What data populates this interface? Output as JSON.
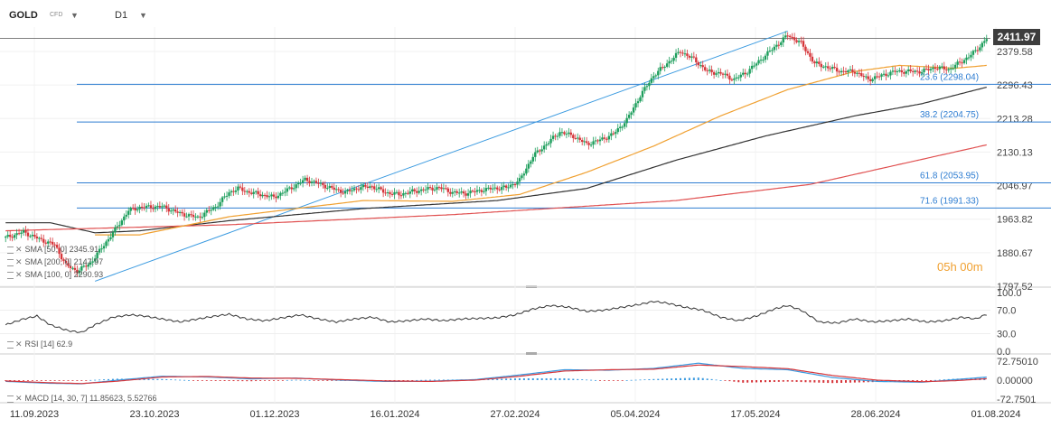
{
  "header": {
    "symbol": "GOLD",
    "symbol_type": "CFD",
    "timeframe": "D1"
  },
  "last_price_label": "2411.97",
  "countdown": "05h 00m",
  "legends": [
    {
      "text": "SMA [50, 0]  2345.91"
    },
    {
      "text": "SMA [200, 0]  2147.97"
    },
    {
      "text": "SMA [100, 0]  2290.93"
    }
  ],
  "rsi_legend": "RSI [14]  62.9",
  "macd_legend": "MACD [14, 30, 7]  11.85623,  5.52766",
  "colors": {
    "up": "#1d9e5c",
    "down": "#d6353a",
    "sma50": "#f0a030",
    "sma200": "#e05050",
    "sma100": "#333333",
    "fib": "#2e7dd1",
    "trend": "#3a9ae0",
    "macd_line": "#3a9ae0",
    "signal_line": "#d6353a",
    "rsi": "#333333"
  },
  "chart_data": {
    "type": "candlestick",
    "x_ticks": [
      "11.09.2023",
      "23.10.2023",
      "01.12.2023",
      "16.01.2024",
      "27.02.2024",
      "05.04.2024",
      "17.05.2024",
      "28.06.2024",
      "01.08.2024"
    ],
    "price_ticks": [
      "2379.58",
      "2296.43",
      "2213.28",
      "2130.13",
      "2046.97",
      "1963.82",
      "1880.67",
      "1797.52"
    ],
    "ylim": [
      1797.52,
      2440
    ],
    "last_price": 2411.97,
    "fibonacci_levels": [
      {
        "label": "23.6 (2298.04)",
        "value": 2298.04
      },
      {
        "label": "38.2 (2204.75)",
        "value": 2204.75
      },
      {
        "label": "61.8 (2053.95)",
        "value": 2053.95
      },
      {
        "label": "71.6 (1991.33)",
        "value": 1991.33
      }
    ],
    "price_keypoints": [
      [
        0,
        1918
      ],
      [
        8,
        1932
      ],
      [
        16,
        1912
      ],
      [
        22,
        1900
      ],
      [
        27,
        1850
      ],
      [
        32,
        1835
      ],
      [
        38,
        1855
      ],
      [
        42,
        1885
      ],
      [
        48,
        1930
      ],
      [
        55,
        1985
      ],
      [
        60,
        1993
      ],
      [
        70,
        1995
      ],
      [
        78,
        1978
      ],
      [
        86,
        1968
      ],
      [
        94,
        1995
      ],
      [
        100,
        2030
      ],
      [
        104,
        2040
      ],
      [
        108,
        2032
      ],
      [
        114,
        2025
      ],
      [
        120,
        2018
      ],
      [
        128,
        2042
      ],
      [
        134,
        2062
      ],
      [
        140,
        2052
      ],
      [
        146,
        2040
      ],
      [
        152,
        2030
      ],
      [
        158,
        2042
      ],
      [
        164,
        2045
      ],
      [
        170,
        2030
      ],
      [
        176,
        2025
      ],
      [
        182,
        2032
      ],
      [
        188,
        2038
      ],
      [
        194,
        2042
      ],
      [
        200,
        2030
      ],
      [
        206,
        2028
      ],
      [
        212,
        2035
      ],
      [
        218,
        2040
      ],
      [
        224,
        2042
      ],
      [
        230,
        2060
      ],
      [
        236,
        2120
      ],
      [
        242,
        2150
      ],
      [
        248,
        2180
      ],
      [
        254,
        2170
      ],
      [
        260,
        2150
      ],
      [
        266,
        2160
      ],
      [
        272,
        2175
      ],
      [
        278,
        2210
      ],
      [
        284,
        2270
      ],
      [
        290,
        2320
      ],
      [
        296,
        2350
      ],
      [
        302,
        2380
      ],
      [
        308,
        2360
      ],
      [
        314,
        2330
      ],
      [
        320,
        2325
      ],
      [
        326,
        2310
      ],
      [
        332,
        2330
      ],
      [
        338,
        2360
      ],
      [
        344,
        2390
      ],
      [
        350,
        2420
      ],
      [
        356,
        2400
      ],
      [
        362,
        2350
      ],
      [
        368,
        2340
      ],
      [
        374,
        2330
      ],
      [
        380,
        2330
      ],
      [
        386,
        2310
      ],
      [
        392,
        2320
      ],
      [
        398,
        2330
      ],
      [
        404,
        2330
      ],
      [
        410,
        2330
      ],
      [
        416,
        2340
      ],
      [
        422,
        2335
      ],
      [
        428,
        2355
      ],
      [
        434,
        2380
      ],
      [
        439,
        2411.97
      ]
    ],
    "sma_50_keypoints": [
      [
        60,
        1925
      ],
      [
        100,
        1970
      ],
      [
        160,
        2010
      ],
      [
        200,
        2008
      ],
      [
        230,
        2025
      ],
      [
        260,
        2080
      ],
      [
        290,
        2145
      ],
      [
        320,
        2220
      ],
      [
        350,
        2285
      ],
      [
        380,
        2330
      ],
      [
        400,
        2345
      ],
      [
        425,
        2338
      ],
      [
        439,
        2345
      ]
    ],
    "sma_200_keypoints": [
      [
        0,
        1935
      ],
      [
        100,
        1950
      ],
      [
        200,
        1975
      ],
      [
        300,
        2010
      ],
      [
        360,
        2050
      ],
      [
        439,
        2148
      ]
    ],
    "sma_100_keypoints": [
      [
        0,
        1955
      ],
      [
        20,
        1955
      ],
      [
        40,
        1930
      ],
      [
        60,
        1935
      ],
      [
        100,
        1960
      ],
      [
        160,
        1990
      ],
      [
        220,
        2010
      ],
      [
        260,
        2040
      ],
      [
        300,
        2110
      ],
      [
        340,
        2170
      ],
      [
        380,
        2220
      ],
      [
        410,
        2250
      ],
      [
        439,
        2291
      ]
    ],
    "trendline": [
      [
        40,
        1810
      ],
      [
        350,
        2430
      ]
    ],
    "rsi": {
      "name": "RSI [14]",
      "last": 62.9,
      "ylim": [
        0,
        100
      ],
      "ticks": [
        "100.0",
        "70.0",
        "30.0",
        "0.0"
      ],
      "keypoints": [
        [
          0,
          45
        ],
        [
          8,
          55
        ],
        [
          14,
          60
        ],
        [
          20,
          45
        ],
        [
          28,
          35
        ],
        [
          34,
          32
        ],
        [
          40,
          45
        ],
        [
          48,
          58
        ],
        [
          56,
          62
        ],
        [
          62,
          60
        ],
        [
          70,
          55
        ],
        [
          78,
          50
        ],
        [
          86,
          55
        ],
        [
          94,
          60
        ],
        [
          100,
          63
        ],
        [
          108,
          55
        ],
        [
          116,
          52
        ],
        [
          124,
          57
        ],
        [
          132,
          62
        ],
        [
          140,
          55
        ],
        [
          148,
          50
        ],
        [
          156,
          55
        ],
        [
          164,
          58
        ],
        [
          172,
          50
        ],
        [
          180,
          52
        ],
        [
          188,
          55
        ],
        [
          196,
          52
        ],
        [
          204,
          55
        ],
        [
          212,
          56
        ],
        [
          220,
          57
        ],
        [
          228,
          62
        ],
        [
          236,
          72
        ],
        [
          244,
          78
        ],
        [
          252,
          75
        ],
        [
          260,
          68
        ],
        [
          268,
          70
        ],
        [
          276,
          75
        ],
        [
          284,
          80
        ],
        [
          290,
          85
        ],
        [
          296,
          82
        ],
        [
          304,
          75
        ],
        [
          312,
          70
        ],
        [
          320,
          58
        ],
        [
          328,
          52
        ],
        [
          336,
          60
        ],
        [
          344,
          72
        ],
        [
          350,
          78
        ],
        [
          356,
          70
        ],
        [
          364,
          50
        ],
        [
          372,
          48
        ],
        [
          380,
          55
        ],
        [
          388,
          50
        ],
        [
          396,
          52
        ],
        [
          404,
          55
        ],
        [
          412,
          50
        ],
        [
          420,
          52
        ],
        [
          428,
          58
        ],
        [
          434,
          55
        ],
        [
          439,
          62.9
        ]
      ]
    },
    "macd": {
      "name": "MACD [14, 30, 7]",
      "macd": 11.85623,
      "signal": 5.52766,
      "ylim": [
        -72.7501,
        72.7501
      ],
      "ticks": [
        "72.75010",
        "0.00000",
        "-72.7501"
      ],
      "macd_keypoints": [
        [
          0,
          -5
        ],
        [
          20,
          -12
        ],
        [
          34,
          -14
        ],
        [
          50,
          0
        ],
        [
          70,
          15
        ],
        [
          90,
          12
        ],
        [
          110,
          5
        ],
        [
          130,
          8
        ],
        [
          150,
          0
        ],
        [
          170,
          -5
        ],
        [
          190,
          -4
        ],
        [
          210,
          2
        ],
        [
          230,
          20
        ],
        [
          250,
          40
        ],
        [
          270,
          38
        ],
        [
          290,
          45
        ],
        [
          310,
          65
        ],
        [
          330,
          45
        ],
        [
          350,
          40
        ],
        [
          370,
          10
        ],
        [
          390,
          -5
        ],
        [
          410,
          -8
        ],
        [
          425,
          2
        ],
        [
          439,
          11.86
        ]
      ],
      "signal_keypoints": [
        [
          0,
          -3
        ],
        [
          20,
          -10
        ],
        [
          34,
          -13
        ],
        [
          50,
          -4
        ],
        [
          70,
          12
        ],
        [
          90,
          14
        ],
        [
          110,
          8
        ],
        [
          130,
          7
        ],
        [
          150,
          2
        ],
        [
          170,
          -3
        ],
        [
          190,
          -5
        ],
        [
          210,
          0
        ],
        [
          230,
          15
        ],
        [
          250,
          35
        ],
        [
          270,
          40
        ],
        [
          290,
          42
        ],
        [
          310,
          58
        ],
        [
          330,
          52
        ],
        [
          350,
          44
        ],
        [
          370,
          18
        ],
        [
          390,
          0
        ],
        [
          410,
          -6
        ],
        [
          425,
          -2
        ],
        [
          439,
          5.53
        ]
      ]
    }
  }
}
